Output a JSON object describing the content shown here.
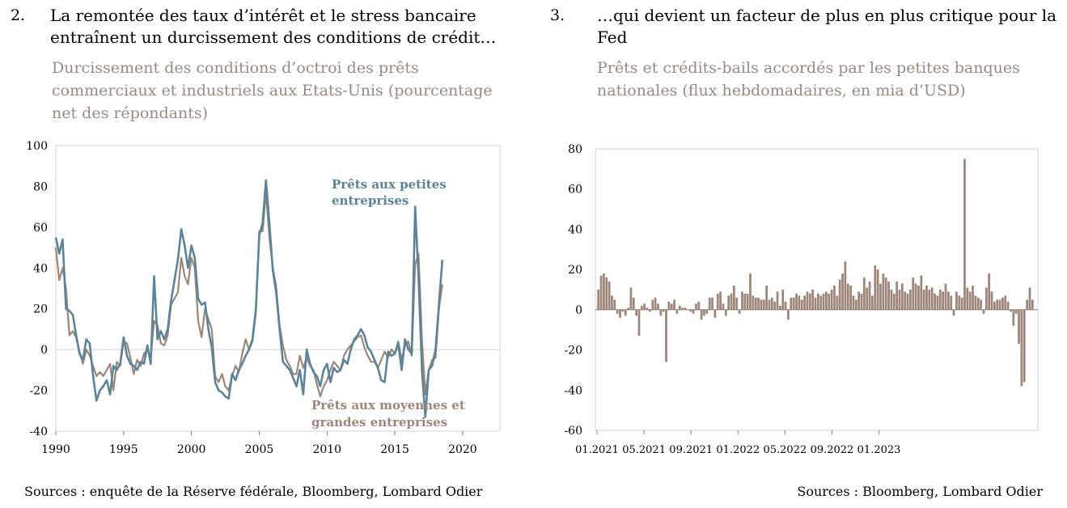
{
  "left": {
    "number": "2.",
    "title_line1": "La remontée des taux d’intérêt et le stress bancaire",
    "title_line2": "entraînent un durcissement des conditions de crédit…",
    "subtitle_line1": "Durcissement des conditions d’octroi des prêts",
    "subtitle_line2": "commerciaux et industriels aux Etats-Unis (pourcentage",
    "subtitle_line3": "net des répondants)",
    "source": "Sources : enquête de la Réserve fédérale, Bloomberg, Lombard Odier"
  },
  "right": {
    "number": "3.",
    "title_line1": "…qui devient un facteur de plus en plus critique pour la",
    "title_line2": "Fed",
    "subtitle_line1": "Prêts et crédits-bails accordés par les petites banques",
    "subtitle_line2": "nationales (flux hebdomadaires, en mia d’USD)",
    "source": "Sources : Bloomberg, Lombard Odier"
  },
  "colors": {
    "small_firms": "#5b8498",
    "large_firms": "#9d857a",
    "bars": "#9d857a"
  },
  "chart_data": [
    {
      "type": "line",
      "ylim": [
        -40,
        100
      ],
      "xlim": [
        1990,
        2022.75
      ],
      "yticks": [
        -40,
        -20,
        0,
        20,
        40,
        60,
        80,
        100
      ],
      "xticks": [
        1990,
        1995,
        2000,
        2005,
        2010,
        2015,
        2020
      ],
      "grid": false,
      "legend": "inline labels",
      "series": [
        {
          "name": "Prêts aux petites entreprises",
          "label_line1": "Prêts aux petites",
          "label_line2": "entreprises",
          "x_start": 1990,
          "step": 0.25,
          "values": [
            55,
            47,
            54,
            20,
            19,
            17,
            7,
            -2,
            -5,
            5,
            3,
            -13,
            -25,
            -20,
            -18,
            -15,
            -22,
            -8,
            -10,
            -7,
            6,
            -3,
            -7,
            -8,
            -10,
            -6,
            -7,
            2,
            -7,
            36,
            5,
            9,
            5,
            10,
            24,
            34,
            44,
            59,
            51,
            40,
            51,
            45,
            25,
            22,
            23,
            10,
            1,
            -16,
            -20,
            -21,
            -23,
            -24,
            -12,
            -15,
            -10,
            -7,
            -3,
            0,
            5,
            20,
            56,
            62,
            83,
            62,
            39,
            28,
            10,
            -6,
            -8,
            -10,
            -14,
            -18,
            -10,
            -22,
            0,
            -7,
            -11,
            -13,
            -18,
            -10,
            -7,
            -16,
            -9,
            -11,
            -10,
            -5,
            -7,
            0,
            5,
            7,
            10,
            7,
            1,
            -1,
            -5,
            -9,
            -15,
            -16,
            -1,
            -3,
            -2,
            3,
            -10,
            5,
            0,
            -2,
            70,
            35,
            -10,
            -33,
            -10,
            -8,
            0,
            22,
            44
          ]
        },
        {
          "name": "Prêts aux moyennes et grandes entreprises",
          "label_line1": "Prêts aux moyennes et",
          "label_line2": "grandes entreprises",
          "x_start": 1990,
          "step": 0.25,
          "values": [
            50,
            34,
            40,
            30,
            7,
            9,
            6,
            -1,
            -7,
            0,
            -3,
            -8,
            -13,
            -11,
            -13,
            -10,
            -7,
            -20,
            -6,
            -8,
            4,
            3,
            -4,
            -12,
            -5,
            -8,
            -2,
            0,
            -4,
            14,
            12,
            3,
            2,
            7,
            22,
            25,
            28,
            45,
            36,
            32,
            45,
            40,
            14,
            6,
            20,
            15,
            10,
            -13,
            -16,
            -12,
            -18,
            -20,
            -13,
            -8,
            -11,
            -2,
            5,
            0,
            4,
            18,
            58,
            58,
            77,
            55,
            40,
            31,
            12,
            2,
            -5,
            -8,
            -12,
            -12,
            -3,
            -9,
            -4,
            -8,
            -10,
            -17,
            -23,
            -18,
            -15,
            -10,
            -6,
            -8,
            -10,
            -3,
            0,
            2,
            4,
            6,
            7,
            1,
            -3,
            -6,
            -6,
            -9,
            -5,
            -1,
            -4,
            0,
            -2,
            4,
            -5,
            2,
            4,
            -3,
            42,
            47,
            5,
            -22,
            -10,
            -5,
            -4,
            20,
            32
          ]
        }
      ]
    },
    {
      "type": "bar",
      "ylim": [
        -60,
        80
      ],
      "yticks": [
        -60,
        -40,
        -20,
        0,
        20,
        40,
        60,
        80
      ],
      "xticks": [
        "01.2021",
        "05.2021",
        "09.2021",
        "01.2022",
        "05.2022",
        "09.2022",
        "01.2023"
      ],
      "x_start_week": 0,
      "weeks_per_month": 4.33,
      "grid": false,
      "legend": "none",
      "series": [
        {
          "values": [
            10,
            17,
            18,
            16,
            14,
            7,
            5,
            -2,
            -4,
            -1,
            -3,
            1,
            11,
            6,
            -3,
            -13,
            2,
            3,
            1,
            -1,
            5,
            6,
            3,
            -3,
            -1,
            -26,
            4,
            3,
            5,
            -2,
            2,
            1,
            1,
            0,
            -1,
            -2,
            3,
            4,
            -5,
            -3,
            -2,
            6,
            6,
            -4,
            8,
            9,
            3,
            -3,
            7,
            8,
            12,
            6,
            -2,
            9,
            8,
            8,
            18,
            7,
            6,
            6,
            5,
            5,
            12,
            5,
            6,
            4,
            9,
            2,
            10,
            4,
            -5,
            6,
            6,
            8,
            7,
            5,
            7,
            9,
            8,
            10,
            6,
            8,
            7,
            8,
            9,
            8,
            10,
            12,
            7,
            15,
            18,
            24,
            13,
            12,
            7,
            5,
            9,
            8,
            16,
            11,
            14,
            7,
            22,
            20,
            13,
            18,
            16,
            14,
            10,
            8,
            14,
            10,
            13,
            9,
            8,
            10,
            16,
            13,
            12,
            17,
            10,
            12,
            10,
            11,
            8,
            7,
            10,
            9,
            13,
            9,
            7,
            -3,
            9,
            7,
            6,
            75,
            11,
            9,
            12,
            7,
            6,
            5,
            -2,
            11,
            18,
            9,
            4,
            5,
            5,
            6,
            7,
            4,
            -1,
            -8,
            -2,
            -17,
            -38,
            -36,
            5,
            11,
            5
          ]
        }
      ]
    }
  ]
}
